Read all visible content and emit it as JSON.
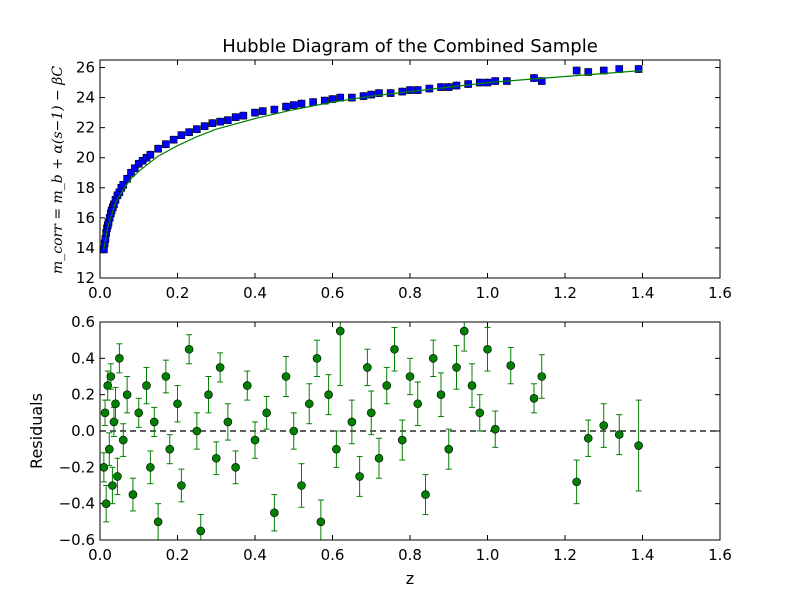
{
  "colors": {
    "top_marker_fill": "#0000ff",
    "top_marker_edge": "#000000",
    "fit_line": "#008000",
    "residual_marker": "#008000",
    "residual_error": "#008000",
    "zero_line": "#000000"
  },
  "chart_data": [
    {
      "type": "scatter",
      "title": "Hubble Diagram of the Combined Sample",
      "xlabel": "",
      "ylabel": "m_corr = m_b + α(s−1) − βC",
      "xlim": [
        0.0,
        1.6
      ],
      "ylim": [
        12,
        26.5
      ],
      "xticks": [
        "0.0",
        "0.2",
        "0.4",
        "0.6",
        "0.8",
        "1.0",
        "1.2",
        "1.4",
        "1.6"
      ],
      "yticks": [
        "12",
        "14",
        "16",
        "18",
        "20",
        "22",
        "24",
        "26"
      ],
      "x": [
        0.01,
        0.012,
        0.014,
        0.016,
        0.018,
        0.02,
        0.022,
        0.025,
        0.028,
        0.03,
        0.033,
        0.036,
        0.04,
        0.045,
        0.05,
        0.055,
        0.06,
        0.07,
        0.08,
        0.09,
        0.1,
        0.11,
        0.12,
        0.13,
        0.15,
        0.17,
        0.19,
        0.21,
        0.23,
        0.25,
        0.27,
        0.29,
        0.31,
        0.33,
        0.35,
        0.37,
        0.4,
        0.42,
        0.45,
        0.48,
        0.5,
        0.52,
        0.55,
        0.58,
        0.6,
        0.62,
        0.65,
        0.68,
        0.7,
        0.72,
        0.75,
        0.78,
        0.8,
        0.82,
        0.85,
        0.88,
        0.9,
        0.92,
        0.95,
        0.98,
        1.0,
        1.02,
        1.05,
        1.12,
        1.14,
        1.23,
        1.26,
        1.3,
        1.34,
        1.39
      ],
      "y": [
        13.9,
        14.3,
        14.6,
        15.0,
        15.3,
        15.5,
        15.7,
        16.0,
        16.3,
        16.5,
        16.7,
        16.9,
        17.2,
        17.5,
        17.7,
        18.0,
        18.2,
        18.6,
        19.0,
        19.3,
        19.6,
        19.8,
        20.0,
        20.2,
        20.6,
        20.9,
        21.2,
        21.5,
        21.7,
        21.9,
        22.1,
        22.3,
        22.4,
        22.5,
        22.7,
        22.8,
        23.0,
        23.1,
        23.2,
        23.4,
        23.5,
        23.6,
        23.7,
        23.8,
        23.9,
        24.0,
        24.0,
        24.1,
        24.2,
        24.3,
        24.3,
        24.4,
        24.5,
        24.5,
        24.6,
        24.7,
        24.7,
        24.8,
        24.9,
        25.0,
        25.0,
        25.1,
        25.1,
        25.3,
        25.1,
        25.8,
        25.7,
        25.8,
        25.9,
        25.9
      ],
      "fit_line": {
        "x": [
          0.01,
          0.02,
          0.04,
          0.06,
          0.08,
          0.1,
          0.15,
          0.2,
          0.25,
          0.3,
          0.4,
          0.5,
          0.6,
          0.7,
          0.8,
          0.9,
          1.0,
          1.1,
          1.2,
          1.3,
          1.4
        ],
        "y": [
          13.9,
          15.4,
          17.0,
          17.9,
          18.6,
          19.1,
          20.1,
          20.8,
          21.4,
          21.9,
          22.6,
          23.2,
          23.7,
          24.1,
          24.4,
          24.7,
          25.0,
          25.2,
          25.4,
          25.6,
          25.8
        ]
      }
    },
    {
      "type": "scatter",
      "title": "",
      "xlabel": "z",
      "ylabel": "Residuals",
      "xlim": [
        0.0,
        1.6
      ],
      "ylim": [
        -0.6,
        0.6
      ],
      "xticks": [
        "0.0",
        "0.2",
        "0.4",
        "0.6",
        "0.8",
        "1.0",
        "1.2",
        "1.4",
        "1.6"
      ],
      "yticks": [
        "0.6",
        "0.4",
        "0.2",
        "0.0",
        "−0.2",
        "−0.4",
        "−0.6"
      ],
      "reference_line_y": 0.0,
      "x": [
        0.01,
        0.013,
        0.016,
        0.02,
        0.024,
        0.028,
        0.032,
        0.036,
        0.04,
        0.045,
        0.05,
        0.06,
        0.07,
        0.085,
        0.1,
        0.12,
        0.13,
        0.14,
        0.15,
        0.17,
        0.18,
        0.2,
        0.21,
        0.23,
        0.25,
        0.26,
        0.28,
        0.3,
        0.31,
        0.33,
        0.35,
        0.38,
        0.4,
        0.43,
        0.45,
        0.48,
        0.5,
        0.52,
        0.54,
        0.56,
        0.57,
        0.59,
        0.61,
        0.62,
        0.65,
        0.67,
        0.69,
        0.7,
        0.72,
        0.74,
        0.76,
        0.78,
        0.8,
        0.82,
        0.84,
        0.86,
        0.88,
        0.9,
        0.92,
        0.94,
        0.96,
        0.98,
        1.0,
        1.02,
        1.06,
        1.12,
        1.14,
        1.23,
        1.26,
        1.3,
        1.34,
        1.39
      ],
      "y": [
        -0.2,
        0.1,
        -0.4,
        0.25,
        -0.1,
        0.3,
        -0.3,
        0.05,
        0.15,
        -0.25,
        0.4,
        -0.05,
        0.2,
        -0.35,
        0.1,
        0.25,
        -0.2,
        0.05,
        -0.5,
        0.3,
        -0.1,
        0.15,
        -0.3,
        0.45,
        0.0,
        -0.55,
        0.2,
        -0.15,
        0.35,
        0.05,
        -0.2,
        0.25,
        -0.05,
        0.1,
        -0.45,
        0.3,
        0.0,
        -0.3,
        0.15,
        0.4,
        -0.5,
        0.2,
        -0.1,
        0.55,
        0.05,
        -0.25,
        0.35,
        0.1,
        -0.15,
        0.25,
        0.45,
        -0.05,
        0.3,
        0.15,
        -0.35,
        0.4,
        0.2,
        -0.1,
        0.35,
        0.55,
        0.25,
        0.1,
        0.45,
        0.01,
        0.36,
        0.18,
        0.3,
        -0.28,
        -0.04,
        0.03,
        -0.02,
        -0.08
      ],
      "err": [
        0.08,
        0.07,
        0.1,
        0.08,
        0.09,
        0.07,
        0.1,
        0.08,
        0.09,
        0.1,
        0.08,
        0.09,
        0.1,
        0.09,
        0.08,
        0.1,
        0.09,
        0.08,
        0.1,
        0.09,
        0.08,
        0.1,
        0.09,
        0.08,
        0.1,
        0.09,
        0.1,
        0.09,
        0.08,
        0.1,
        0.09,
        0.08,
        0.1,
        0.09,
        0.1,
        0.11,
        0.1,
        0.12,
        0.11,
        0.1,
        0.12,
        0.11,
        0.1,
        0.3,
        0.12,
        0.11,
        0.1,
        0.12,
        0.11,
        0.1,
        0.12,
        0.11,
        0.1,
        0.12,
        0.11,
        0.1,
        0.12,
        0.11,
        0.12,
        0.11,
        0.12,
        0.1,
        0.12,
        0.1,
        0.1,
        0.08,
        0.12,
        0.12,
        0.1,
        0.12,
        0.11,
        0.25
      ]
    }
  ]
}
